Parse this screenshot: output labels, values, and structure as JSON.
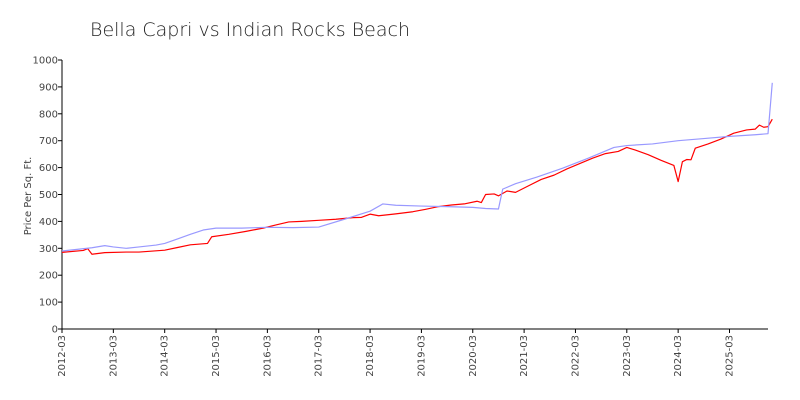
{
  "chart_data": {
    "type": "line",
    "title": "Bella Capri vs Indian Rocks Beach",
    "xlabel": "",
    "ylabel": "Price Per Sq. Ft.",
    "ylim": [
      0,
      1000
    ],
    "yticks": [
      0,
      100,
      200,
      300,
      400,
      500,
      600,
      700,
      800,
      900,
      1000
    ],
    "xlim": [
      "2012-03",
      "2025-12"
    ],
    "xticks": [
      "2012-03",
      "2013-03",
      "2014-03",
      "2015-03",
      "2016-03",
      "2017-03",
      "2018-03",
      "2019-03",
      "2020-03",
      "2021-03",
      "2022-03",
      "2023-03",
      "2024-03",
      "2025-03"
    ],
    "grid": false,
    "legend": "none",
    "series": [
      {
        "color": "#ff0000",
        "points": [
          [
            "2012-03",
            285
          ],
          [
            "2012-08",
            292
          ],
          [
            "2012-09",
            299
          ],
          [
            "2012-10",
            278
          ],
          [
            "2013-01",
            284
          ],
          [
            "2013-06",
            286
          ],
          [
            "2013-09",
            286
          ],
          [
            "2014-03",
            293
          ],
          [
            "2014-06",
            303
          ],
          [
            "2014-09",
            313
          ],
          [
            "2015-01",
            318
          ],
          [
            "2015-02",
            343
          ],
          [
            "2015-06",
            352
          ],
          [
            "2015-10",
            363
          ],
          [
            "2016-02",
            375
          ],
          [
            "2016-05",
            387
          ],
          [
            "2016-08",
            398
          ],
          [
            "2016-11",
            400
          ],
          [
            "2017-03",
            404
          ],
          [
            "2017-07",
            408
          ],
          [
            "2017-11",
            414
          ],
          [
            "2018-01",
            415
          ],
          [
            "2018-03",
            427
          ],
          [
            "2018-05",
            421
          ],
          [
            "2018-09",
            428
          ],
          [
            "2019-01",
            436
          ],
          [
            "2019-04",
            445
          ],
          [
            "2019-07",
            455
          ],
          [
            "2019-10",
            461
          ],
          [
            "2020-01",
            465
          ],
          [
            "2020-04",
            475
          ],
          [
            "2020-05",
            470
          ],
          [
            "2020-06",
            500
          ],
          [
            "2020-08",
            502
          ],
          [
            "2020-09",
            495
          ],
          [
            "2020-11",
            513
          ],
          [
            "2021-01",
            508
          ],
          [
            "2021-04",
            532
          ],
          [
            "2021-07",
            556
          ],
          [
            "2021-10",
            572
          ],
          [
            "2022-01",
            595
          ],
          [
            "2022-04",
            615
          ],
          [
            "2022-07",
            635
          ],
          [
            "2022-10",
            652
          ],
          [
            "2023-01",
            660
          ],
          [
            "2023-03",
            675
          ],
          [
            "2023-05",
            665
          ],
          [
            "2023-08",
            648
          ],
          [
            "2023-11",
            627
          ],
          [
            "2024-02",
            608
          ],
          [
            "2024-03",
            548
          ],
          [
            "2024-04",
            622
          ],
          [
            "2024-05",
            630
          ],
          [
            "2024-06",
            629
          ],
          [
            "2024-07",
            672
          ],
          [
            "2024-10",
            688
          ],
          [
            "2025-01",
            706
          ],
          [
            "2025-04",
            728
          ],
          [
            "2025-07",
            740
          ],
          [
            "2025-09",
            743
          ],
          [
            "2025-10",
            758
          ],
          [
            "2025-11",
            750
          ],
          [
            "2025-12",
            752
          ],
          [
            "2026-01",
            780
          ]
        ]
      },
      {
        "color": "#9999ff",
        "points": [
          [
            "2012-03",
            290
          ],
          [
            "2012-10",
            302
          ],
          [
            "2013-01",
            310
          ],
          [
            "2013-03",
            305
          ],
          [
            "2013-06",
            300
          ],
          [
            "2013-09",
            305
          ],
          [
            "2014-01",
            312
          ],
          [
            "2014-03",
            318
          ],
          [
            "2014-06",
            335
          ],
          [
            "2014-09",
            352
          ],
          [
            "2014-12",
            368
          ],
          [
            "2015-03",
            375
          ],
          [
            "2015-09",
            375
          ],
          [
            "2016-03",
            378
          ],
          [
            "2016-09",
            377
          ],
          [
            "2017-03",
            379
          ],
          [
            "2017-09",
            408
          ],
          [
            "2018-03",
            438
          ],
          [
            "2018-06",
            465
          ],
          [
            "2018-09",
            460
          ],
          [
            "2019-03",
            457
          ],
          [
            "2019-09",
            455
          ],
          [
            "2020-03",
            452
          ],
          [
            "2020-06",
            448
          ],
          [
            "2020-09",
            446
          ],
          [
            "2020-10",
            520
          ],
          [
            "2021-01",
            540
          ],
          [
            "2021-06",
            565
          ],
          [
            "2021-12",
            598
          ],
          [
            "2022-06",
            635
          ],
          [
            "2022-12",
            675
          ],
          [
            "2023-03",
            682
          ],
          [
            "2023-09",
            688
          ],
          [
            "2024-03",
            700
          ],
          [
            "2024-09",
            708
          ],
          [
            "2025-03",
            716
          ],
          [
            "2025-09",
            722
          ],
          [
            "2025-12",
            726
          ],
          [
            "2026-01",
            915
          ]
        ]
      }
    ]
  }
}
